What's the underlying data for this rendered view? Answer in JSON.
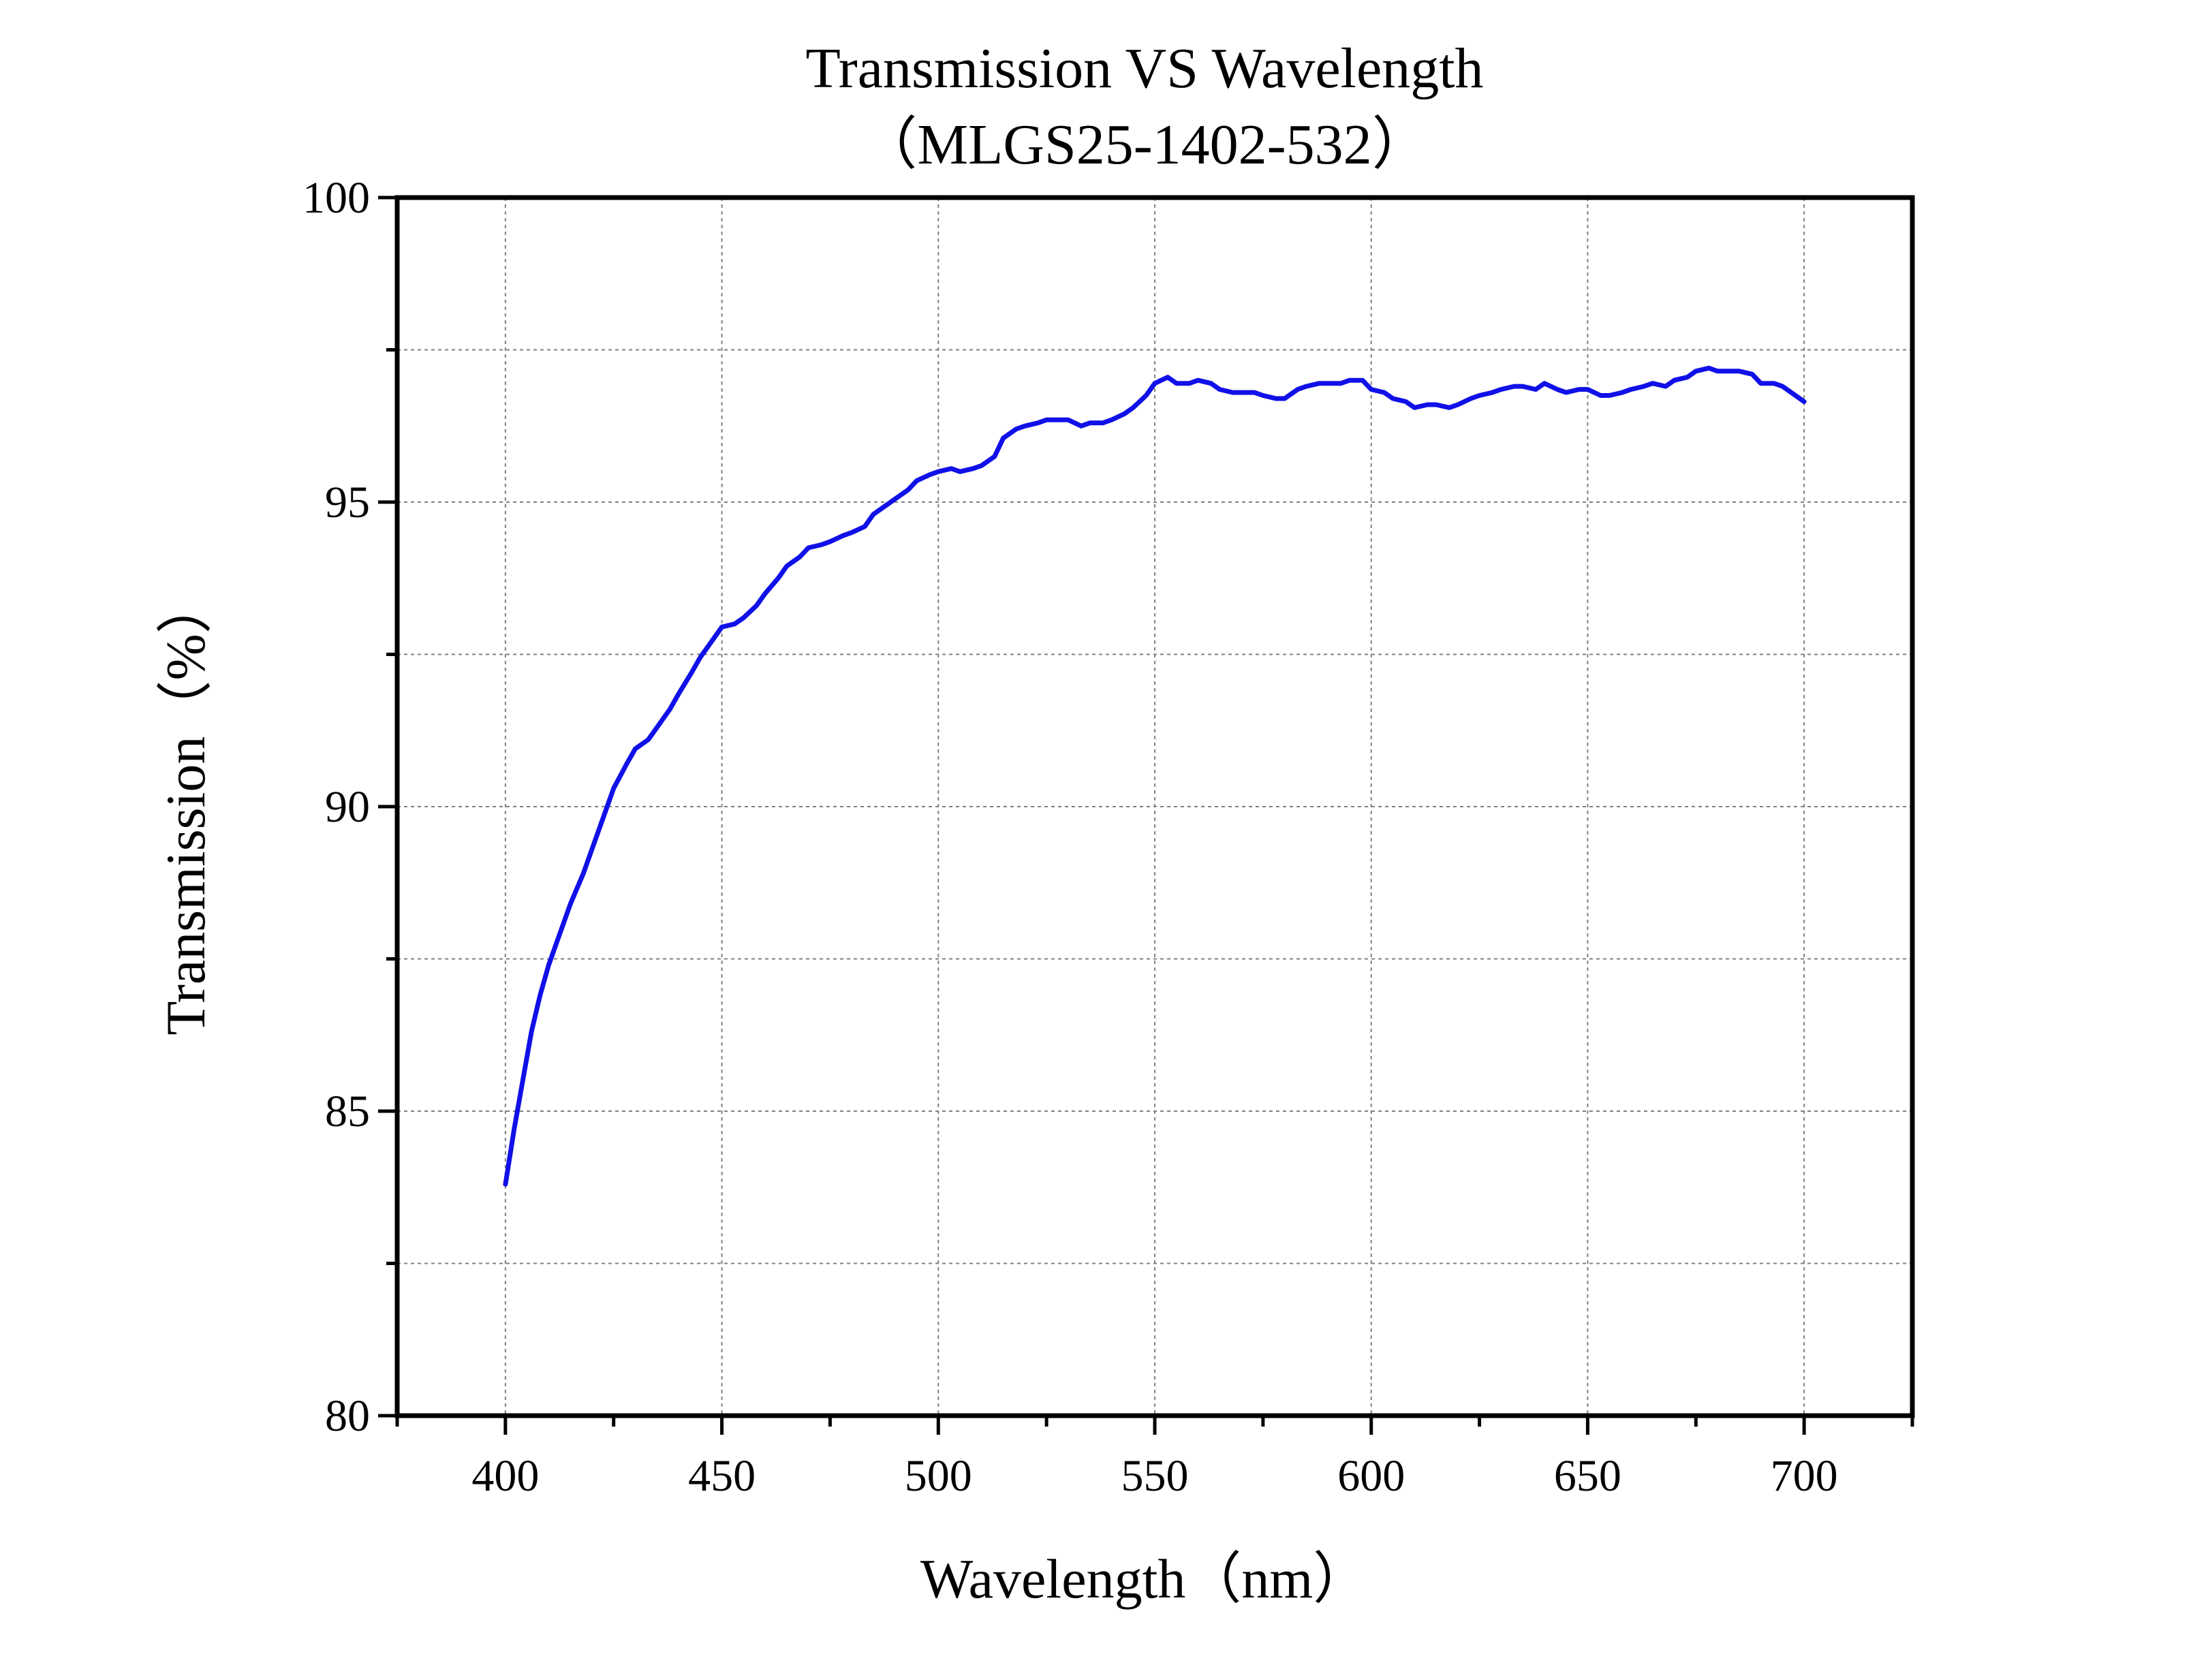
{
  "chart_data": {
    "type": "line",
    "title": "Transmission VS Wavelength",
    "subtitle": "（MLGS25-1402-532）",
    "xlabel": "Wavelength（nm）",
    "ylabel": "Transmission（%）",
    "xlim": [
      375,
      725
    ],
    "ylim": [
      80,
      100
    ],
    "x_ticks": [
      400,
      450,
      500,
      550,
      600,
      650,
      700
    ],
    "y_ticks": [
      80,
      85,
      90,
      95,
      100
    ],
    "grid": true,
    "line_color": "#1010e8",
    "series": [
      {
        "x": [
          400,
          402,
          404,
          406,
          408,
          410,
          412,
          415,
          418,
          420,
          423,
          425,
          428,
          430,
          433,
          435,
          438,
          440,
          443,
          445,
          448,
          450,
          453,
          455,
          458,
          460,
          463,
          465,
          468,
          470,
          473,
          475,
          478,
          480,
          483,
          485,
          488,
          490,
          493,
          495,
          498,
          500,
          503,
          505,
          508,
          510,
          513,
          515,
          518,
          520,
          523,
          525,
          528,
          530,
          533,
          535,
          538,
          540,
          543,
          545,
          548,
          550,
          553,
          555,
          558,
          560,
          563,
          565,
          568,
          570,
          573,
          575,
          578,
          580,
          583,
          585,
          588,
          590,
          593,
          595,
          598,
          600,
          603,
          605,
          608,
          610,
          613,
          615,
          618,
          620,
          623,
          625,
          628,
          630,
          633,
          635,
          638,
          640,
          643,
          645,
          648,
          650,
          653,
          655,
          658,
          660,
          663,
          665,
          668,
          670,
          673,
          675,
          678,
          680,
          683,
          685,
          688,
          690,
          693,
          695,
          698,
          700
        ],
        "y": [
          83.8,
          84.7,
          85.5,
          86.3,
          86.9,
          87.4,
          87.8,
          88.4,
          88.9,
          89.3,
          89.9,
          90.3,
          90.7,
          90.95,
          91.1,
          91.3,
          91.6,
          91.85,
          92.2,
          92.45,
          92.75,
          92.95,
          93.0,
          93.1,
          93.3,
          93.5,
          93.75,
          93.95,
          94.1,
          94.25,
          94.3,
          94.35,
          94.45,
          94.5,
          94.6,
          94.8,
          94.95,
          95.05,
          95.2,
          95.35,
          95.45,
          95.5,
          95.55,
          95.5,
          95.55,
          95.6,
          95.75,
          96.05,
          96.2,
          96.25,
          96.3,
          96.35,
          96.35,
          96.35,
          96.25,
          96.3,
          96.3,
          96.35,
          96.45,
          96.55,
          96.75,
          96.95,
          97.05,
          96.95,
          96.95,
          97.0,
          96.95,
          96.85,
          96.8,
          96.8,
          96.8,
          96.75,
          96.7,
          96.7,
          96.85,
          96.9,
          96.95,
          96.95,
          96.95,
          97.0,
          97.0,
          96.85,
          96.8,
          96.7,
          96.65,
          96.55,
          96.6,
          96.6,
          96.55,
          96.6,
          96.7,
          96.75,
          96.8,
          96.85,
          96.9,
          96.9,
          96.85,
          96.95,
          96.85,
          96.8,
          96.85,
          96.85,
          96.75,
          96.75,
          96.8,
          96.85,
          96.9,
          96.95,
          96.9,
          97.0,
          97.05,
          97.15,
          97.2,
          97.15,
          97.15,
          97.15,
          97.1,
          96.95,
          96.95,
          96.9,
          96.75,
          96.65
        ]
      }
    ]
  }
}
